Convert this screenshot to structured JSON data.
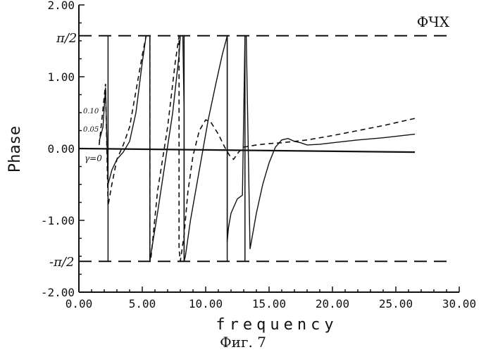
{
  "chart_data": {
    "type": "line",
    "title": "ФЧХ",
    "xlabel": "frequency",
    "ylabel": "Phase",
    "caption": "Фиг. 7",
    "xlim": [
      0,
      30
    ],
    "ylim": [
      -2,
      2
    ],
    "x_ticks": [
      0,
      5,
      10,
      15,
      20,
      25,
      30
    ],
    "x_tick_labels": [
      "0.00",
      "5.00",
      "10.00",
      "15.00",
      "20.00",
      "25.00",
      "30.00"
    ],
    "y_ticks": [
      2,
      1,
      0,
      -1,
      -2
    ],
    "y_tick_labels": [
      "2.00",
      "1.00",
      "0.00",
      "-1.00",
      "-2.00"
    ],
    "reference_lines": [
      {
        "label": "π/2",
        "value": 1.5708,
        "style": "dashed"
      },
      {
        "label": "-π/2",
        "value": -1.5708,
        "style": "dashed"
      }
    ],
    "annotations": [
      "0.10",
      "0.05",
      "γ=0"
    ],
    "grid": false,
    "series": [
      {
        "style": "solid-baseline",
        "x": [
          0,
          26.5
        ],
        "y": [
          0,
          -0.05
        ]
      },
      {
        "style": "solid",
        "x": [
          1.6,
          1.9,
          2.1,
          2.3,
          2.6,
          3.0,
          3.5,
          4.0,
          4.5,
          5.0,
          5.3,
          5.5,
          5.6,
          5.6,
          5.6,
          5.7,
          6.2,
          6.8,
          7.4,
          7.9,
          8.0,
          8.1,
          8.2,
          8.3,
          8.3,
          8.4,
          8.8,
          9.5,
          10.2,
          10.8,
          11.3,
          11.7,
          11.7,
          11.8,
          12.0,
          12.5,
          12.9,
          13.1,
          13.2,
          13.5,
          14.0,
          14.5,
          15.0,
          15.5,
          16.0,
          16.5,
          17.0,
          17.5,
          18.0,
          19.0,
          20.0,
          22.0,
          24.0,
          26.5
        ],
        "y": [
          0.1,
          0.3,
          0.85,
          -0.5,
          -0.3,
          -0.15,
          -0.05,
          0.1,
          0.5,
          1.2,
          1.57,
          1.57,
          1.57,
          0.0,
          -1.57,
          -1.45,
          -0.9,
          -0.2,
          0.5,
          1.3,
          1.57,
          1.57,
          1.57,
          0.5,
          -1.57,
          -1.5,
          -1.0,
          -0.3,
          0.4,
          0.9,
          1.3,
          1.57,
          -1.3,
          -1.1,
          -0.9,
          -0.7,
          -0.65,
          1.57,
          1.57,
          -1.4,
          -0.9,
          -0.5,
          -0.2,
          0.02,
          0.12,
          0.14,
          0.1,
          0.08,
          0.05,
          0.06,
          0.08,
          0.12,
          0.15,
          0.2
        ]
      },
      {
        "style": "dashed",
        "x": [
          1.6,
          1.9,
          2.1,
          2.3,
          2.6,
          3.0,
          3.5,
          4.0,
          4.5,
          5.0,
          5.3,
          5.6,
          5.6,
          5.7,
          6.2,
          7.0,
          7.6,
          7.9,
          7.9,
          8.0,
          8.3,
          8.6,
          9.0,
          9.5,
          10.0,
          10.4,
          11.0,
          11.5,
          11.9,
          12.2,
          12.6,
          13.0,
          14.0,
          15.0,
          16.0,
          18.0,
          20.0,
          22.0,
          24.0,
          26.5
        ],
        "y": [
          0.05,
          0.55,
          0.9,
          -0.8,
          -0.5,
          -0.15,
          0.05,
          0.3,
          0.8,
          1.3,
          1.57,
          1.57,
          -1.57,
          -1.5,
          -0.6,
          0.3,
          1.2,
          1.57,
          -1.4,
          -1.57,
          -1.2,
          -0.6,
          -0.1,
          0.25,
          0.4,
          0.37,
          0.2,
          0.02,
          -0.1,
          -0.15,
          -0.05,
          0.02,
          0.05,
          0.07,
          0.08,
          0.12,
          0.18,
          0.25,
          0.32,
          0.42
        ]
      }
    ],
    "vertical_jumps": [
      2.3,
      5.6,
      8.3,
      11.7,
      13.1
    ]
  }
}
